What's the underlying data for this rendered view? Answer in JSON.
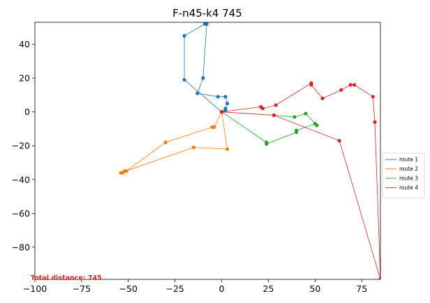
{
  "chart_data": {
    "type": "line",
    "title": "F-n45-k4 745",
    "xlabel": "",
    "ylabel": "",
    "xlim": [
      -100,
      85
    ],
    "ylim": [
      -99,
      53
    ],
    "xticks": [
      -100,
      -75,
      -50,
      -25,
      0,
      25,
      50,
      75
    ],
    "xtick_labels": [
      "−100",
      "−75",
      "−50",
      "−25",
      "0",
      "25",
      "50",
      "75"
    ],
    "yticks": [
      -80,
      -60,
      -40,
      -20,
      0,
      20,
      40
    ],
    "ytick_labels": [
      "−80",
      "−60",
      "−40",
      "−20",
      "0",
      "20",
      "40"
    ],
    "grid": false,
    "legend_position": "right",
    "annotation": {
      "text": "Total distance: 745",
      "color": "#d62728"
    },
    "series": [
      {
        "name": "route 1",
        "color": "#1f77b4",
        "points": [
          [
            0,
            0
          ],
          [
            -20,
            19
          ],
          [
            -20,
            45
          ],
          [
            -9,
            52
          ],
          [
            -8,
            52
          ],
          [
            -10,
            20
          ],
          [
            -13,
            11
          ],
          [
            -2,
            9
          ],
          [
            2,
            9
          ],
          [
            3,
            5
          ],
          [
            2,
            2
          ],
          [
            2,
            1
          ],
          [
            0,
            0
          ]
        ]
      },
      {
        "name": "route 2",
        "color": "#ff7f0e",
        "points": [
          [
            0,
            0
          ],
          [
            -4,
            -9
          ],
          [
            -5,
            -9
          ],
          [
            -30,
            -18
          ],
          [
            -51,
            -35
          ],
          [
            -52,
            -35
          ],
          [
            -53,
            -36
          ],
          [
            -54,
            -36
          ],
          [
            -15,
            -21
          ],
          [
            3,
            -22
          ],
          [
            0,
            0
          ]
        ]
      },
      {
        "name": "route 3",
        "color": "#2ca02c",
        "points": [
          [
            0,
            0
          ],
          [
            24,
            -18
          ],
          [
            24,
            -19
          ],
          [
            40,
            -12
          ],
          [
            40,
            -11
          ],
          [
            50,
            -7
          ],
          [
            51,
            -8
          ],
          [
            45,
            -1
          ],
          [
            39,
            -3
          ],
          [
            28,
            -2
          ],
          [
            0,
            0
          ]
        ]
      },
      {
        "name": "route 4",
        "color": "#d62728",
        "points": [
          [
            0,
            0
          ],
          [
            21,
            3
          ],
          [
            22,
            2
          ],
          [
            29,
            4
          ],
          [
            48,
            17
          ],
          [
            48,
            16
          ],
          [
            54,
            8
          ],
          [
            64,
            13
          ],
          [
            69,
            16
          ],
          [
            71,
            16
          ],
          [
            81,
            9
          ],
          [
            82,
            -6
          ],
          [
            85,
            -99
          ],
          [
            63,
            -17
          ],
          [
            28,
            -2
          ],
          [
            0,
            0
          ]
        ]
      }
    ]
  }
}
